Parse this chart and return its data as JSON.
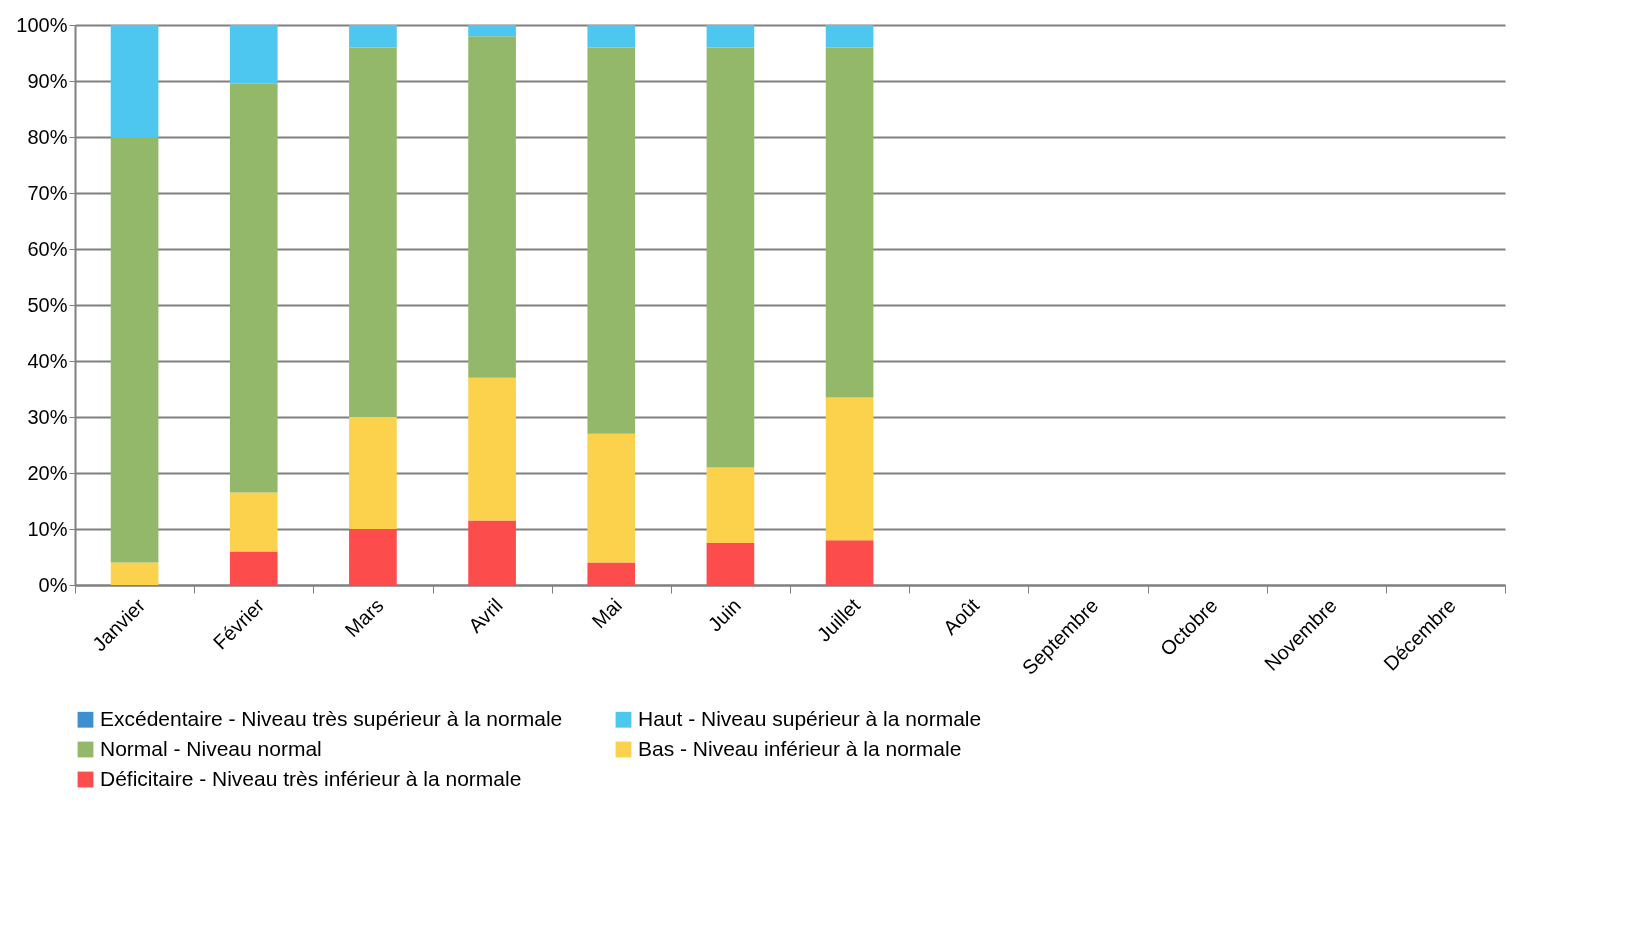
{
  "chart_data": {
    "type": "bar",
    "stacked": true,
    "categories": [
      "Janvier",
      "Février",
      "Mars",
      "Avril",
      "Mai",
      "Juin",
      "Juillet",
      "Août",
      "Septembre",
      "Octobre",
      "Novembre",
      "Décembre"
    ],
    "series": [
      {
        "name": "Déficitaire - Niveau très inférieur à la normale",
        "color": "#fc4c4c",
        "values": [
          0,
          6,
          10,
          11.5,
          4,
          7.5,
          8,
          null,
          null,
          null,
          null,
          null
        ]
      },
      {
        "name": "Bas - Niveau inférieur à la normale",
        "color": "#fcd14c",
        "values": [
          4,
          10.5,
          20,
          25.5,
          23,
          13.5,
          25.5,
          null,
          null,
          null,
          null,
          null
        ]
      },
      {
        "name": "Normal - Niveau normal",
        "color": "#94b86a",
        "values": [
          76,
          73,
          66,
          61,
          69,
          75,
          62.5,
          null,
          null,
          null,
          null,
          null
        ]
      },
      {
        "name": "Haut - Niveau supérieur à la normale",
        "color": "#4dc7f0",
        "values": [
          20,
          10.5,
          4,
          2,
          4,
          4,
          4,
          null,
          null,
          null,
          null,
          null
        ]
      },
      {
        "name": "Excédentaire - Niveau très supérieur à la normale",
        "color": "#3e8ed0",
        "values": [
          0,
          0,
          0,
          0,
          0,
          0,
          0,
          null,
          null,
          null,
          null,
          null
        ]
      }
    ],
    "ylim": [
      0,
      100
    ],
    "yticks": [
      {
        "value": 0,
        "label": "0%"
      },
      {
        "value": 10,
        "label": "10%"
      },
      {
        "value": 20,
        "label": "20%"
      },
      {
        "value": 30,
        "label": "30%"
      },
      {
        "value": 40,
        "label": "40%"
      },
      {
        "value": 50,
        "label": "50%"
      },
      {
        "value": 60,
        "label": "60%"
      },
      {
        "value": 70,
        "label": "70%"
      },
      {
        "value": 80,
        "label": "80%"
      },
      {
        "value": 90,
        "label": "90%"
      },
      {
        "value": 100,
        "label": "100%"
      }
    ],
    "grid": "y",
    "legend": "bottom"
  }
}
